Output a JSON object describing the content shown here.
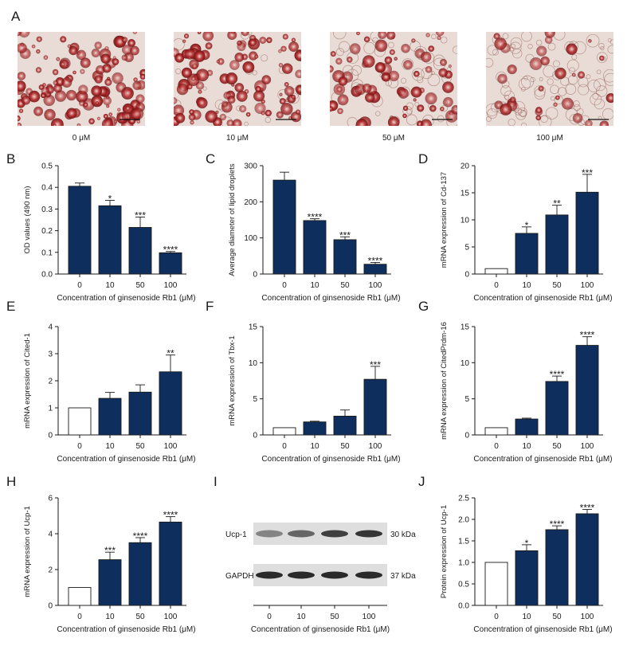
{
  "figure": {
    "panel_letters": [
      "A",
      "B",
      "C",
      "D",
      "E",
      "F",
      "G",
      "H",
      "I",
      "J"
    ],
    "micrographs": [
      {
        "caption": "0 μM",
        "stain_level": 1.0
      },
      {
        "caption": "10 μM",
        "stain_level": 0.8
      },
      {
        "caption": "50 μM",
        "stain_level": 0.5
      },
      {
        "caption": "100 μM",
        "stain_level": 0.22
      }
    ],
    "colors": {
      "bar_fill": "#0e2f5e",
      "control_fill": "#ffffff",
      "axis": "#1a1a1a"
    }
  },
  "chart_data": [
    {
      "panel": "B",
      "type": "bar",
      "categories": [
        "0",
        "10",
        "50",
        "100"
      ],
      "values": [
        0.405,
        0.315,
        0.215,
        0.098
      ],
      "errors": [
        0.015,
        0.025,
        0.048,
        0.006
      ],
      "significance": [
        "",
        "*",
        "***",
        "****"
      ],
      "xlabel": "Concentration of ginsenoside Rb1 (μM)",
      "ylabel": "OD values (490 nm)",
      "ylim": [
        0,
        0.5
      ],
      "yticks": [
        "0.0",
        "0.1",
        "0.2",
        "0.3",
        "0.4",
        "0.5"
      ],
      "control_white": false
    },
    {
      "panel": "C",
      "type": "bar",
      "categories": [
        "0",
        "10",
        "50",
        "100"
      ],
      "values": [
        260,
        148,
        95,
        27
      ],
      "errors": [
        22,
        5,
        8,
        5
      ],
      "significance": [
        "",
        "****",
        "***",
        "****"
      ],
      "xlabel": "Concentration of ginsenoside Rb1 (μM)",
      "ylabel": "Average diameter of lipid droplets",
      "ylim": [
        0,
        300
      ],
      "yticks": [
        "0",
        "100",
        "200",
        "300"
      ],
      "control_white": false
    },
    {
      "panel": "D",
      "type": "bar",
      "categories": [
        "0",
        "10",
        "50",
        "100"
      ],
      "values": [
        1.0,
        7.5,
        10.9,
        15.1
      ],
      "errors": [
        0,
        1.2,
        1.8,
        3.3
      ],
      "significance": [
        "",
        "*",
        "**",
        "***"
      ],
      "xlabel": "Concentration of ginsenoside Rb1 (μM)",
      "ylabel": "mRNA expression of Cd-137",
      "ylim": [
        0,
        20
      ],
      "yticks": [
        "0",
        "5",
        "10",
        "15",
        "20"
      ],
      "control_white": true
    },
    {
      "panel": "E",
      "type": "bar",
      "categories": [
        "0",
        "10",
        "50",
        "100"
      ],
      "values": [
        1.0,
        1.35,
        1.58,
        2.33
      ],
      "errors": [
        0,
        0.22,
        0.27,
        0.62
      ],
      "significance": [
        "",
        "",
        "",
        "**"
      ],
      "xlabel": "Concentration of ginsenoside Rb1 (μM)",
      "ylabel": "mRNA expression of Cited-1",
      "ylim": [
        0,
        4
      ],
      "yticks": [
        "0",
        "1",
        "2",
        "3",
        "4"
      ],
      "control_white": true
    },
    {
      "panel": "F",
      "type": "bar",
      "categories": [
        "0",
        "10",
        "50",
        "100"
      ],
      "values": [
        1.0,
        1.8,
        2.6,
        7.7
      ],
      "errors": [
        0,
        0.1,
        0.85,
        1.8
      ],
      "significance": [
        "",
        "",
        "",
        "***"
      ],
      "xlabel": "Concentration of ginsenoside Rb1 (μM)",
      "ylabel": "mRNA expression of Tbx-1",
      "ylim": [
        0,
        15
      ],
      "yticks": [
        "0",
        "5",
        "10",
        "15"
      ],
      "control_white": true
    },
    {
      "panel": "G",
      "type": "bar",
      "categories": [
        "0",
        "10",
        "50",
        "100"
      ],
      "values": [
        1.0,
        2.2,
        7.4,
        12.4
      ],
      "errors": [
        0,
        0.12,
        0.75,
        1.2
      ],
      "significance": [
        "",
        "",
        "****",
        "****"
      ],
      "xlabel": "Concentration of ginsenoside Rb1 (μM)",
      "ylabel": "mRNA expression of CitedPrdm-16",
      "ylim": [
        0,
        15
      ],
      "yticks": [
        "0",
        "5",
        "10",
        "15"
      ],
      "control_white": true
    },
    {
      "panel": "H",
      "type": "bar",
      "categories": [
        "0",
        "10",
        "50",
        "100"
      ],
      "values": [
        1.0,
        2.55,
        3.5,
        4.65
      ],
      "errors": [
        0,
        0.42,
        0.28,
        0.3
      ],
      "significance": [
        "",
        "***",
        "****",
        "****"
      ],
      "xlabel": "Concentration of ginsenoside Rb1 (μM)",
      "ylabel": "mRNA expression of Ucp-1",
      "ylim": [
        0,
        6
      ],
      "yticks": [
        "0",
        "2",
        "4",
        "6"
      ],
      "control_white": true
    },
    {
      "panel": "J",
      "type": "bar",
      "categories": [
        "0",
        "10",
        "50",
        "100"
      ],
      "values": [
        1.0,
        1.27,
        1.76,
        2.13
      ],
      "errors": [
        0,
        0.14,
        0.09,
        0.1
      ],
      "significance": [
        "",
        "*",
        "****",
        "****"
      ],
      "xlabel": "Concentration of ginsenoside Rb1 (μM)",
      "ylabel": "Protein expression of Ucp-1",
      "ylim": [
        0,
        2.5
      ],
      "yticks": [
        "0.0",
        "0.5",
        "1.0",
        "1.5",
        "2.0",
        "2.5"
      ],
      "control_white": true
    }
  ],
  "western_blot": {
    "panel": "I",
    "bands": [
      {
        "protein": "Ucp-1",
        "size": "30 kDa",
        "intensity": [
          0.55,
          0.68,
          0.85,
          0.9
        ]
      },
      {
        "protein": "GAPDH",
        "size": "37 kDa",
        "intensity": [
          0.95,
          0.95,
          0.95,
          0.95
        ]
      }
    ],
    "categories": [
      "0",
      "10",
      "50",
      "100"
    ],
    "xlabel": "Concentration of ginsenoside Rb1 (μM)"
  }
}
